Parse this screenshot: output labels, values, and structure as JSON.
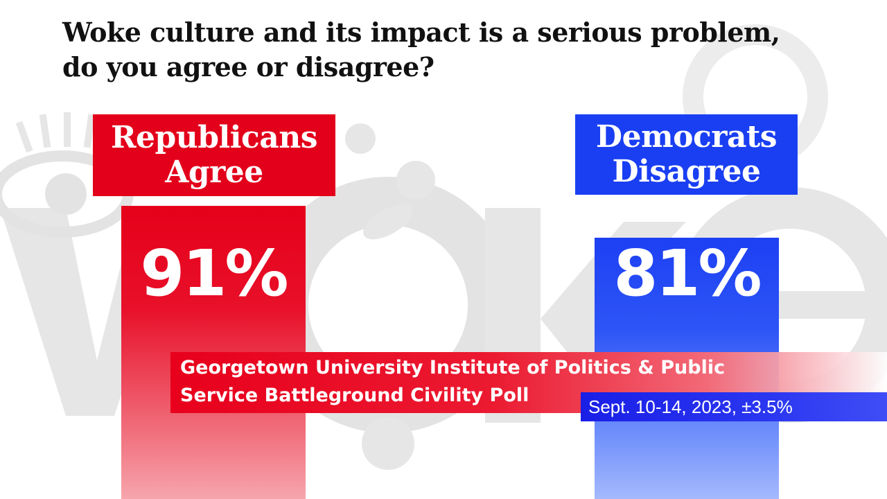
{
  "question": {
    "line1": "Woke culture and its impact is a serious problem,",
    "line2": "do you agree or disagree?"
  },
  "chart_data": {
    "type": "bar",
    "categories": [
      "Republicans Agree",
      "Democrats Disagree"
    ],
    "values": [
      91,
      81
    ],
    "value_labels": [
      "91%",
      "81%"
    ],
    "ylim": [
      0,
      100
    ],
    "groups": [
      {
        "line1": "Republicans",
        "line2": "Agree",
        "value": 91,
        "value_label": "91%",
        "color": "#e3001b"
      },
      {
        "line1": "Democrats",
        "line2": "Disagree",
        "value": 81,
        "value_label": "81%",
        "color": "#1a3ff2"
      }
    ]
  },
  "source": {
    "line1": "Georgetown University Institute of Politics & Public",
    "line2": "Service Battleground Civility Poll",
    "dates": "Sept. 10-14, 2023, ±3.5%"
  },
  "background": {
    "decoration": "woke-lettering-watermark"
  },
  "colors": {
    "republican": "#e3001b",
    "democrat": "#1a3ff2",
    "question_text": "#111111"
  }
}
